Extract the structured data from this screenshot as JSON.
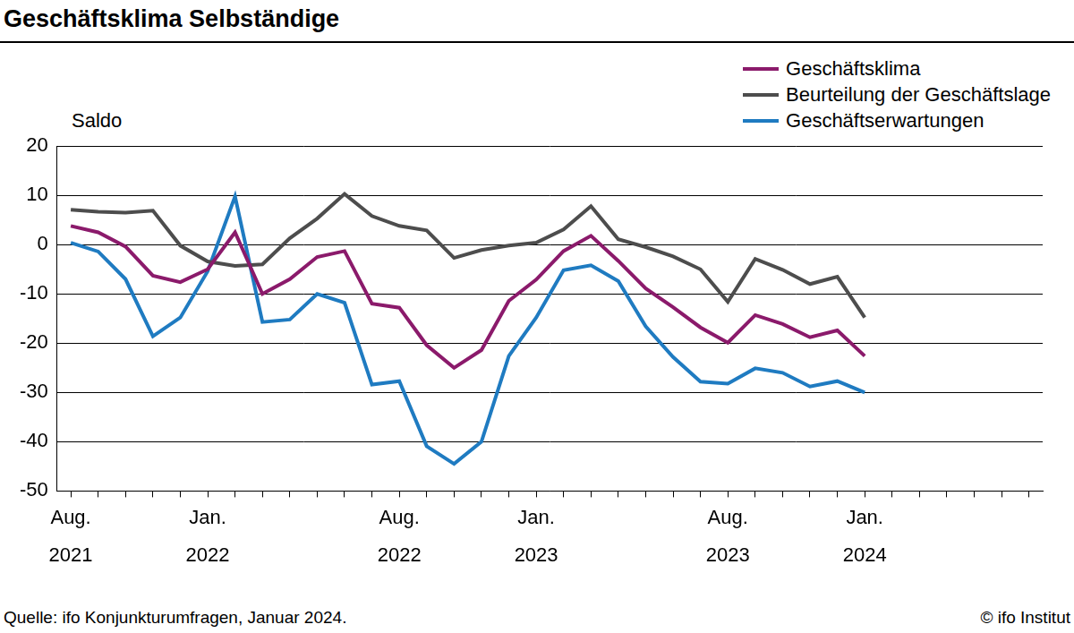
{
  "chart_data": {
    "type": "line",
    "title": "Geschäftsklima Selbständige",
    "y_label": "Saldo",
    "source": "Quelle: ifo Konjunkturumfragen, Januar 2024.",
    "copyright": "© ifo Institut",
    "categories": [
      "Aug. 2021",
      null,
      null,
      null,
      null,
      "Jan. 2022",
      null,
      null,
      null,
      null,
      null,
      null,
      "Aug. 2022",
      null,
      null,
      null,
      null,
      "Jan. 2023",
      null,
      null,
      null,
      null,
      null,
      null,
      "Aug. 2023",
      null,
      null,
      null,
      null,
      "Jan. 2024",
      null,
      null,
      null,
      null,
      null,
      null
    ],
    "series": [
      {
        "name": "Geschäftsklima",
        "color": "#8b1a6b",
        "values": [
          3.8,
          2.5,
          -0.4,
          -6.3,
          -7.6,
          -5,
          2.5,
          -10,
          -7,
          -2.5,
          -1.3,
          -12,
          -12.8,
          -20.4,
          -25,
          -21.4,
          -11.4,
          -7.1,
          -1.3,
          1.8,
          -3.3,
          -8.9,
          -12.7,
          -16.8,
          -19.9,
          -14.3,
          -16.1,
          -18.8,
          -17.4,
          -22.6,
          null,
          null,
          null,
          null,
          null,
          null
        ]
      },
      {
        "name": "Beurteilung der Geschäftslage",
        "color": "#4d4d4d",
        "values": [
          7.1,
          6.7,
          6.5,
          6.9,
          -0.2,
          -3.4,
          -4.3,
          -4,
          1.3,
          5.3,
          10.3,
          5.8,
          3.8,
          2.9,
          -2.7,
          -1.1,
          -0.2,
          0.4,
          3.1,
          7.8,
          1.1,
          -0.5,
          -2.4,
          -5,
          -11.6,
          -2.9,
          -5.1,
          -8,
          -6.5,
          -14.8,
          null,
          null,
          null,
          null,
          null,
          null
        ]
      },
      {
        "name": "Geschäftserwartungen",
        "color": "#1f7bc1",
        "values": [
          0.4,
          -1.4,
          -7,
          -18.6,
          -14.8,
          -5.4,
          9.8,
          -15.7,
          -15.2,
          -10,
          -11.8,
          -28.4,
          -27.7,
          -40.9,
          -44.5,
          -40,
          -22.6,
          -14.8,
          -5.2,
          -4.2,
          -7.4,
          -16.6,
          -22.8,
          -27.8,
          -28.2,
          -25.1,
          -26,
          -28.8,
          -27.7,
          -30,
          null,
          null,
          null,
          null,
          null,
          null
        ]
      }
    ],
    "ylim": [
      -50,
      20
    ],
    "yticks": [
      -50,
      -40,
      -30,
      -20,
      -10,
      0,
      10,
      20
    ],
    "grid": true,
    "legend": "top-right",
    "marker": "none",
    "line_style": "solid"
  }
}
